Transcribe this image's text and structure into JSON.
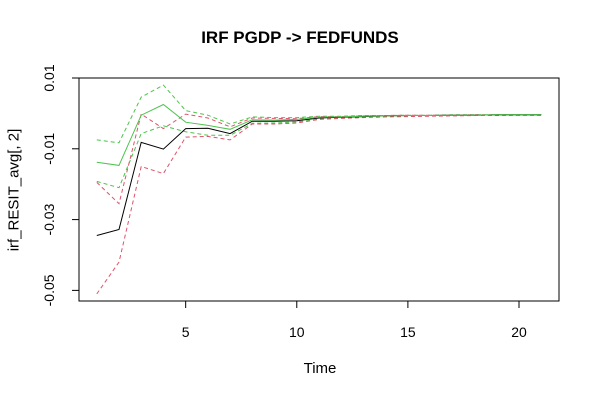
{
  "chart_data": {
    "type": "line",
    "title": "IRF PGDP -> FEDFUNDS",
    "xlabel": "Time",
    "ylabel": "irf_RESIT_avg[, 2]",
    "xlim": [
      0.2,
      21.8
    ],
    "ylim": [
      -0.053,
      0.01
    ],
    "x_ticks": [
      5,
      10,
      15,
      20
    ],
    "x_tick_labels": [
      "5",
      "10",
      "15",
      "20"
    ],
    "y_ticks": [
      -0.05,
      -0.03,
      -0.01,
      0.01
    ],
    "y_tick_labels": [
      "-0.05",
      "-0.03",
      "-0.01",
      "0.01"
    ],
    "grid": false,
    "x": [
      1,
      2,
      3,
      4,
      5,
      6,
      7,
      8,
      9,
      10,
      11,
      12,
      13,
      14,
      15,
      16,
      17,
      18,
      19,
      20,
      21
    ],
    "series": [
      {
        "color": "#000000",
        "dash": "solid",
        "values": [
          -0.0345,
          -0.0328,
          -0.0082,
          -0.0101,
          -0.0043,
          -0.0042,
          -0.0057,
          -0.0022,
          -0.0022,
          -0.0021,
          -0.0013,
          -0.0011,
          -0.0009,
          -0.0007,
          -0.0006,
          -0.0006,
          -0.0005,
          -0.0005,
          -0.0004,
          -0.0004,
          -0.0004
        ]
      },
      {
        "color": "#4cc44c",
        "dash": "solid",
        "values": [
          -0.0138,
          -0.0147,
          -0.0005,
          0.0025,
          -0.0025,
          -0.0034,
          -0.0045,
          -0.0018,
          -0.0019,
          -0.0017,
          -0.0011,
          -0.001,
          -0.0008,
          -0.0007,
          -0.0006,
          -0.0006,
          -0.0005,
          -0.0005,
          -0.0004,
          -0.0004,
          -0.0004
        ]
      },
      {
        "color": "#4cc44c",
        "dash": "dashed",
        "values": [
          -0.0075,
          -0.0083,
          0.0046,
          0.008,
          0.0008,
          -0.0005,
          -0.003,
          -0.001,
          -0.0012,
          -0.0012,
          -0.0008,
          -0.0008,
          -0.0006,
          -0.0006,
          -0.0005,
          -0.0005,
          -0.0004,
          -0.0004,
          -0.0004,
          -0.0004,
          -0.0004
        ]
      },
      {
        "color": "#4cc44c",
        "dash": "dashed",
        "values": [
          -0.0192,
          -0.021,
          -0.0057,
          -0.0035,
          -0.0052,
          -0.0062,
          -0.0062,
          -0.0028,
          -0.0027,
          -0.0024,
          -0.0016,
          -0.0013,
          -0.0011,
          -0.0009,
          -0.0008,
          -0.0007,
          -0.0006,
          -0.0006,
          -0.0005,
          -0.0005,
          -0.0005
        ]
      },
      {
        "color": "#df536b",
        "dash": "dashed",
        "values": [
          -0.0195,
          -0.0255,
          -0.0002,
          -0.0043,
          -0.0002,
          -0.0013,
          -0.0038,
          -0.0013,
          -0.0014,
          -0.0015,
          -0.0009,
          -0.0009,
          -0.0007,
          -0.0006,
          -0.0005,
          -0.0005,
          -0.0005,
          -0.0004,
          -0.0004,
          -0.0004,
          -0.0004
        ]
      },
      {
        "color": "#df536b",
        "dash": "dashed",
        "values": [
          -0.051,
          -0.042,
          -0.015,
          -0.017,
          -0.0067,
          -0.0065,
          -0.0075,
          -0.003,
          -0.003,
          -0.0027,
          -0.0017,
          -0.0014,
          -0.0012,
          -0.001,
          -0.0009,
          -0.0008,
          -0.0007,
          -0.0006,
          -0.0006,
          -0.0005,
          -0.0005
        ]
      }
    ]
  }
}
